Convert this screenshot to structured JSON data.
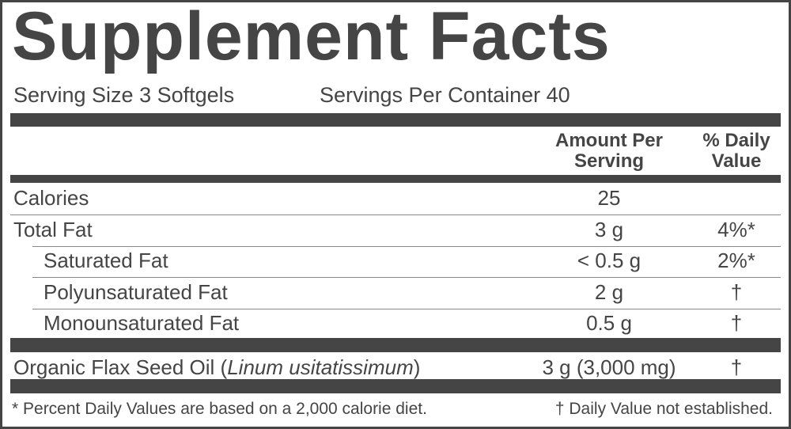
{
  "header": {
    "title": "Supplement Facts",
    "serving_size": "Serving Size 3 Softgels",
    "servings_per_container": "Servings Per Container 40"
  },
  "table": {
    "columns": [
      "Amount Per Serving",
      "% Daily Value"
    ],
    "rows": [
      {
        "name": "Calories",
        "amount": "25",
        "dv": ""
      },
      {
        "name": "Total Fat",
        "amount": "3 g",
        "dv": "4%*"
      },
      {
        "name": "Saturated Fat",
        "amount": "< 0.5 g",
        "dv": "2%*"
      },
      {
        "name": "Polyunsaturated Fat",
        "amount": "2 g",
        "dv": "†"
      },
      {
        "name": "Monounsaturated Fat",
        "amount": "0.5 g",
        "dv": "†"
      }
    ],
    "ingredient": {
      "name_prefix": "Organic Flax Seed Oil (",
      "latin": "Linum usitatissimum",
      "name_suffix": ")",
      "amount": "3 g (3,000 mg)",
      "dv": "†"
    }
  },
  "footnotes": {
    "percent": "* Percent Daily Values are based on a 2,000 calorie diet.",
    "dagger": "† Daily Value not established."
  }
}
